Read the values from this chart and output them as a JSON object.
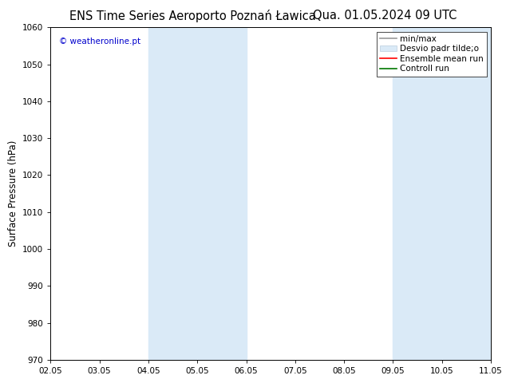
{
  "title_left": "ENS Time Series Aeroporto Poznań Ławica",
  "title_right": "Qua. 01.05.2024 09 UTC",
  "ylabel": "Surface Pressure (hPa)",
  "ylim": [
    970,
    1060
  ],
  "yticks": [
    970,
    980,
    990,
    1000,
    1010,
    1020,
    1030,
    1040,
    1050,
    1060
  ],
  "xlim": [
    0,
    9
  ],
  "xtick_labels": [
    "02.05",
    "03.05",
    "04.05",
    "05.05",
    "06.05",
    "07.05",
    "08.05",
    "09.05",
    "10.05",
    "11.05"
  ],
  "xtick_positions": [
    0,
    1,
    2,
    3,
    4,
    5,
    6,
    7,
    8,
    9
  ],
  "shaded_bands": [
    {
      "x_start": 2.0,
      "x_end": 4.0,
      "color": "#daeaf7"
    },
    {
      "x_start": 7.0,
      "x_end": 9.0,
      "color": "#daeaf7"
    }
  ],
  "copyright_text": "© weatheronline.pt",
  "copyright_color": "#0000cc",
  "legend_items": [
    {
      "label": "min/max",
      "color": "#999999",
      "linestyle": "-",
      "type": "line"
    },
    {
      "label": "Desvio padr tilde;o",
      "color": "#daeaf7",
      "edgecolor": "#bbccdd",
      "type": "patch"
    },
    {
      "label": "Ensemble mean run",
      "color": "#ff0000",
      "linestyle": "-",
      "type": "line"
    },
    {
      "label": "Controll run",
      "color": "#007700",
      "linestyle": "-",
      "type": "line"
    }
  ],
  "bg_color": "#ffffff",
  "plot_bg_color": "#ffffff",
  "spine_color": "#000000",
  "tick_label_fontsize": 7.5,
  "axis_label_fontsize": 8.5,
  "title_fontsize": 10.5,
  "legend_fontsize": 7.5
}
